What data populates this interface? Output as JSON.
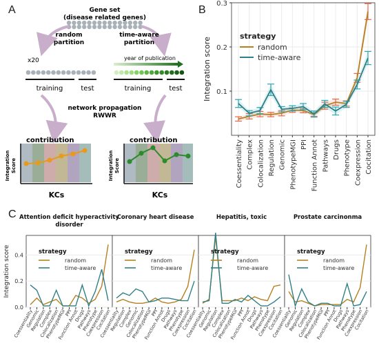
{
  "panels": {
    "a": "A",
    "b": "B",
    "c": "C"
  },
  "schematic": {
    "gene_set_title": "Gene set",
    "gene_set_subtitle": "(disease related genes)",
    "random_partition": [
      "random",
      "partition"
    ],
    "timeaware_partition": [
      "time-aware",
      "partition"
    ],
    "repeat": "x20",
    "year_label": "year of publication",
    "training": "training",
    "test": "test",
    "propagation": [
      "network propagation",
      "RWWR"
    ],
    "contribution": "contribution",
    "integration_score_axis": [
      "Integration",
      "Score"
    ],
    "kcs": "KCs",
    "colors": {
      "grey_dot": "#a9b1b9",
      "green_dark": "#2a7a2a",
      "green_light": "#a7dc8a",
      "arrow": "#c8aecb",
      "orange": "#e89a1c",
      "green_line": "#2d8a2d"
    }
  },
  "colors": {
    "random": "#b5801f",
    "time_aware": "#2e7f86",
    "error_random": "#e8674a",
    "error_time_aware": "#2aa7b0",
    "grid": "#ebebeb",
    "panel_bg": "#f2f2f2"
  },
  "chart_data": [
    {
      "type": "line",
      "panel": "B",
      "xlabel": "",
      "ylabel": "Integration score",
      "ylim": [
        0.0,
        0.3
      ],
      "yticks": [
        0.1,
        0.2,
        0.3
      ],
      "legend_title": "strategy",
      "legend_position": "top-left",
      "categories": [
        "Coessentiality",
        "Complex",
        "Colocalization",
        "Regulation",
        "Genomic",
        "PhenotypeMGI",
        "PPI",
        "Function Annot",
        "Pathways",
        "Drugs",
        "Phenotype",
        "Coexpression",
        "Cocitation"
      ],
      "series": [
        {
          "name": "random",
          "values": [
            0.037,
            0.043,
            0.048,
            0.047,
            0.05,
            0.057,
            0.056,
            0.047,
            0.067,
            0.075,
            0.072,
            0.13,
            0.28
          ],
          "error": [
            0.005,
            0.006,
            0.006,
            0.005,
            0.006,
            0.005,
            0.005,
            0.004,
            0.008,
            0.007,
            0.006,
            0.01,
            0.018
          ]
        },
        {
          "name": "time-aware",
          "values": [
            0.072,
            0.05,
            0.056,
            0.103,
            0.059,
            0.061,
            0.065,
            0.048,
            0.071,
            0.055,
            0.07,
            0.115,
            0.175
          ],
          "error": [
            0.009,
            0.006,
            0.007,
            0.013,
            0.006,
            0.006,
            0.007,
            0.007,
            0.008,
            0.009,
            0.007,
            0.01,
            0.015
          ]
        }
      ]
    },
    {
      "type": "line",
      "panel": "C",
      "title": "Attention deficit hyperactivity disorder",
      "ylabel": "Integration score",
      "ylim": [
        0.0,
        0.55
      ],
      "yticks": [
        0.0,
        0.2,
        0.4
      ],
      "legend_title": "strategy",
      "categories": [
        "Coessentiality",
        "Genomic",
        "Regulation",
        "Complex",
        "Colocalization",
        "PhenotypeMGI",
        "PPI",
        "Function Annot",
        "Drugs",
        "Pathways",
        "Phenotype",
        "Coexpression",
        "Cocitation"
      ],
      "series": [
        {
          "name": "random",
          "values": [
            0.02,
            0.07,
            0.02,
            0.04,
            0.06,
            0.01,
            0.01,
            0.09,
            0.07,
            0.03,
            0.06,
            0.16,
            0.48
          ]
        },
        {
          "name": "time-aware",
          "values": [
            0.17,
            0.13,
            0.01,
            0.01,
            0.13,
            0.01,
            0.01,
            0.01,
            0.17,
            0.01,
            0.12,
            0.29,
            0.05
          ]
        }
      ]
    },
    {
      "type": "line",
      "panel": "C",
      "title": "Coronary heart disease",
      "ylim": [
        0.0,
        0.55
      ],
      "categories": [
        "Coessentiality",
        "Regulation",
        "Complex",
        "Genomic",
        "Colocalization",
        "PhenotypeMGI",
        "PPI",
        "Function Annot",
        "Drugs",
        "Pathways",
        "Phenotype",
        "Coexpression",
        "Cocitation"
      ],
      "series": [
        {
          "name": "random",
          "values": [
            0.04,
            0.06,
            0.04,
            0.03,
            0.03,
            0.04,
            0.07,
            0.04,
            0.03,
            0.04,
            0.06,
            0.16,
            0.44
          ]
        },
        {
          "name": "time-aware",
          "values": [
            0.07,
            0.11,
            0.09,
            0.14,
            0.12,
            0.04,
            0.05,
            0.07,
            0.07,
            0.06,
            0.05,
            0.05,
            0.2
          ]
        }
      ]
    },
    {
      "type": "line",
      "panel": "C",
      "title": "Hepatitis, toxic",
      "ylim": [
        0.0,
        0.55
      ],
      "categories": [
        "Coessentiality",
        "Genomic",
        "Regulation",
        "Complex",
        "Colocalization",
        "PhenotypeMGI",
        "PPI",
        "Function Annot",
        "Drugs",
        "Pathways",
        "Phenotype",
        "Coexpression",
        "Cocitation"
      ],
      "series": [
        {
          "name": "random",
          "values": [
            0.03,
            0.06,
            0.54,
            0.05,
            0.05,
            0.05,
            0.07,
            0.05,
            0.08,
            0.06,
            0.05,
            0.16,
            0.17
          ]
        },
        {
          "name": "time-aware",
          "values": [
            0.04,
            0.05,
            0.57,
            0.03,
            0.03,
            0.06,
            0.04,
            0.09,
            0.05,
            0.01,
            0.01,
            0.04,
            0.08
          ]
        }
      ]
    },
    {
      "type": "line",
      "panel": "C",
      "title": "Prostate carcinonma",
      "ylim": [
        0.0,
        0.55
      ],
      "categories": [
        "Coessentiality",
        "Genomic",
        "Regulation",
        "Complex",
        "Colocalization",
        "PhenotypeMGI",
        "PPI",
        "Function Annot",
        "Drugs",
        "Pathways",
        "Phenotype",
        "Coexpression",
        "Cocitation"
      ],
      "series": [
        {
          "name": "random",
          "values": [
            0.12,
            0.04,
            0.05,
            0.03,
            0.01,
            0.02,
            0.02,
            0.02,
            0.02,
            0.06,
            0.04,
            0.15,
            0.48
          ]
        },
        {
          "name": "time-aware",
          "values": [
            0.25,
            0.01,
            0.14,
            0.04,
            0.01,
            0.03,
            0.03,
            0.01,
            0.01,
            0.18,
            0.01,
            0.02,
            0.12
          ]
        }
      ]
    }
  ]
}
